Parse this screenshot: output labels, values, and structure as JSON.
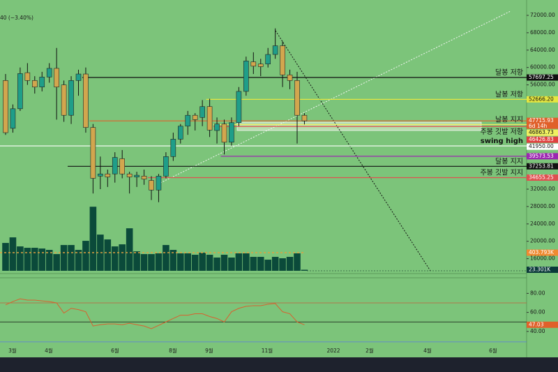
{
  "chart_data": {
    "type": "candlestick",
    "header": "40 (−3.40%)",
    "open": [
      57000,
      46000,
      50500,
      58800,
      57000,
      55500,
      57800,
      59800,
      56000,
      49000,
      57000,
      58500,
      46200,
      35000,
      35500,
      35500,
      39000,
      35500,
      34800,
      35000,
      34000,
      31800,
      35000,
      39500,
      43500,
      46500,
      49000,
      48500,
      51000,
      45500,
      47000,
      42800,
      47300,
      54500,
      61300,
      60800,
      60800,
      63000,
      65000,
      58300,
      57000,
      49000
    ],
    "high": [
      58500,
      51500,
      60000,
      61000,
      58000,
      59000,
      61000,
      64500,
      57000,
      58000,
      59500,
      60000,
      47000,
      39500,
      36500,
      40500,
      41000,
      36000,
      36000,
      36500,
      35000,
      35500,
      40500,
      45000,
      47000,
      50000,
      49500,
      52500,
      52800,
      48500,
      48000,
      48500,
      55500,
      62500,
      63500,
      62000,
      64500,
      69000,
      66000,
      59500,
      59000,
      49500
    ],
    "low": [
      44500,
      45000,
      50000,
      56000,
      54000,
      54500,
      56500,
      48000,
      47500,
      47000,
      53500,
      45000,
      31000,
      32000,
      32500,
      33500,
      34500,
      31000,
      32500,
      33000,
      29500,
      29000,
      34500,
      38500,
      42500,
      44500,
      45500,
      46500,
      44000,
      42500,
      40000,
      42000,
      46500,
      53500,
      58500,
      58000,
      60000,
      62000,
      55500,
      55000,
      42500,
      46900
    ],
    "close": [
      45000,
      50500,
      58600,
      57000,
      55500,
      57800,
      59800,
      55500,
      49000,
      57000,
      58500,
      46200,
      34500,
      35500,
      34800,
      39300,
      35500,
      34800,
      35200,
      34300,
      31800,
      35000,
      39500,
      43500,
      46500,
      49000,
      48000,
      51000,
      45600,
      47000,
      42800,
      47300,
      54500,
      61500,
      60300,
      60200,
      63000,
      65000,
      58300,
      57000,
      49000,
      47715.93
    ],
    "up_color": "#1f9e89",
    "down_color": "#d2a64e",
    "ylim": [
      12884,
      73928
    ],
    "yticks": [
      {
        "value": 72000,
        "label": "72000.00"
      },
      {
        "value": 68000,
        "label": "68000.00"
      },
      {
        "value": 64000,
        "label": "64000.00"
      },
      {
        "value": 60000,
        "label": "60000.00"
      },
      {
        "value": 56000,
        "label": "56000.00"
      },
      {
        "value": 32000,
        "label": "32000.00"
      },
      {
        "value": 28000,
        "label": "28000.00"
      },
      {
        "value": 24000,
        "label": "24000.00"
      },
      {
        "value": 20000,
        "label": "20000.00"
      },
      {
        "value": 16000,
        "label": "16000.00"
      }
    ],
    "levels": [
      {
        "value": 57697.25,
        "label": "57697.25",
        "color": "#111111",
        "from": 11,
        "annotation": "달봉 저항"
      },
      {
        "value": 52666.2,
        "label": "52666.20",
        "color": "#e6e640",
        "from": 28,
        "annotation": "날봉 저항"
      },
      {
        "value": 47715.93,
        "label": "47715.93",
        "countdown": "6d 14h",
        "color": "#e0602a",
        "from": 12
      },
      {
        "value": 46863.73,
        "label": "46863.73",
        "color": "#f0f060",
        "from": 29,
        "annotation": "날봉 지지"
      },
      {
        "value": 46426.83,
        "label": "46426.83",
        "color": "#e04040",
        "from": 29,
        "annotation": "주봉 깃발 저항"
      },
      {
        "value": 41950.0,
        "label": "41950.00",
        "color": "#ffffff",
        "annotation": "swing high"
      },
      {
        "value": 39573.53,
        "label": "39573.53",
        "color": "#9c27b0",
        "from": 30
      },
      {
        "value": 37253.81,
        "label": "37253.81",
        "color": "#111111",
        "from": 9,
        "annotation": "달봉 지지"
      },
      {
        "value": 34655.25,
        "label": "34655.25",
        "color": "#e05050",
        "from": 20,
        "annotation": "주봉 깃발 지지"
      }
    ],
    "volume": {
      "values": [
        620,
        744,
        543,
        512,
        512,
        496,
        465,
        372,
        574,
        574,
        465,
        667,
        1426,
        806,
        698,
        543,
        589,
        946,
        434,
        372,
        372,
        388,
        574,
        465,
        388,
        388,
        357,
        403,
        357,
        295,
        357,
        295,
        388,
        388,
        310,
        310,
        248,
        310,
        279,
        310,
        388,
        23.301
      ],
      "value_labels": {
        "41": "23.301K"
      },
      "ma": 403.793,
      "ma_label": "403.793K",
      "color": "#0b4a3a",
      "ylim": [
        0,
        1600
      ]
    },
    "rsi": {
      "values": [
        67.9,
        71.4,
        74.3,
        72.9,
        72.9,
        72.1,
        71.4,
        70.0,
        59.3,
        64.3,
        62.9,
        60.7,
        45.7,
        47.1,
        47.9,
        47.9,
        47.1,
        48.6,
        47.1,
        45.7,
        42.9,
        46.4,
        50.0,
        53.6,
        57.1,
        57.1,
        58.6,
        58.6,
        55.7,
        53.6,
        50.0,
        60.7,
        64.3,
        66.4,
        67.1,
        67.1,
        68.6,
        69.3,
        60.7,
        58.6,
        50.0,
        47.03
      ],
      "last_label": "47.03",
      "color": "#d9602e",
      "ylim": [
        17.9,
        96.4
      ],
      "yticks": [
        {
          "value": 80,
          "label": "80.00"
        },
        {
          "value": 60,
          "label": "60.00"
        },
        {
          "value": 40,
          "label": "40.00"
        }
      ],
      "bands": [
        70,
        50,
        29
      ]
    },
    "time_labels": [
      "3월",
      "4월",
      "6월",
      "8월",
      "9월",
      "11월",
      "2022",
      "2월",
      "4월",
      "6월"
    ]
  }
}
